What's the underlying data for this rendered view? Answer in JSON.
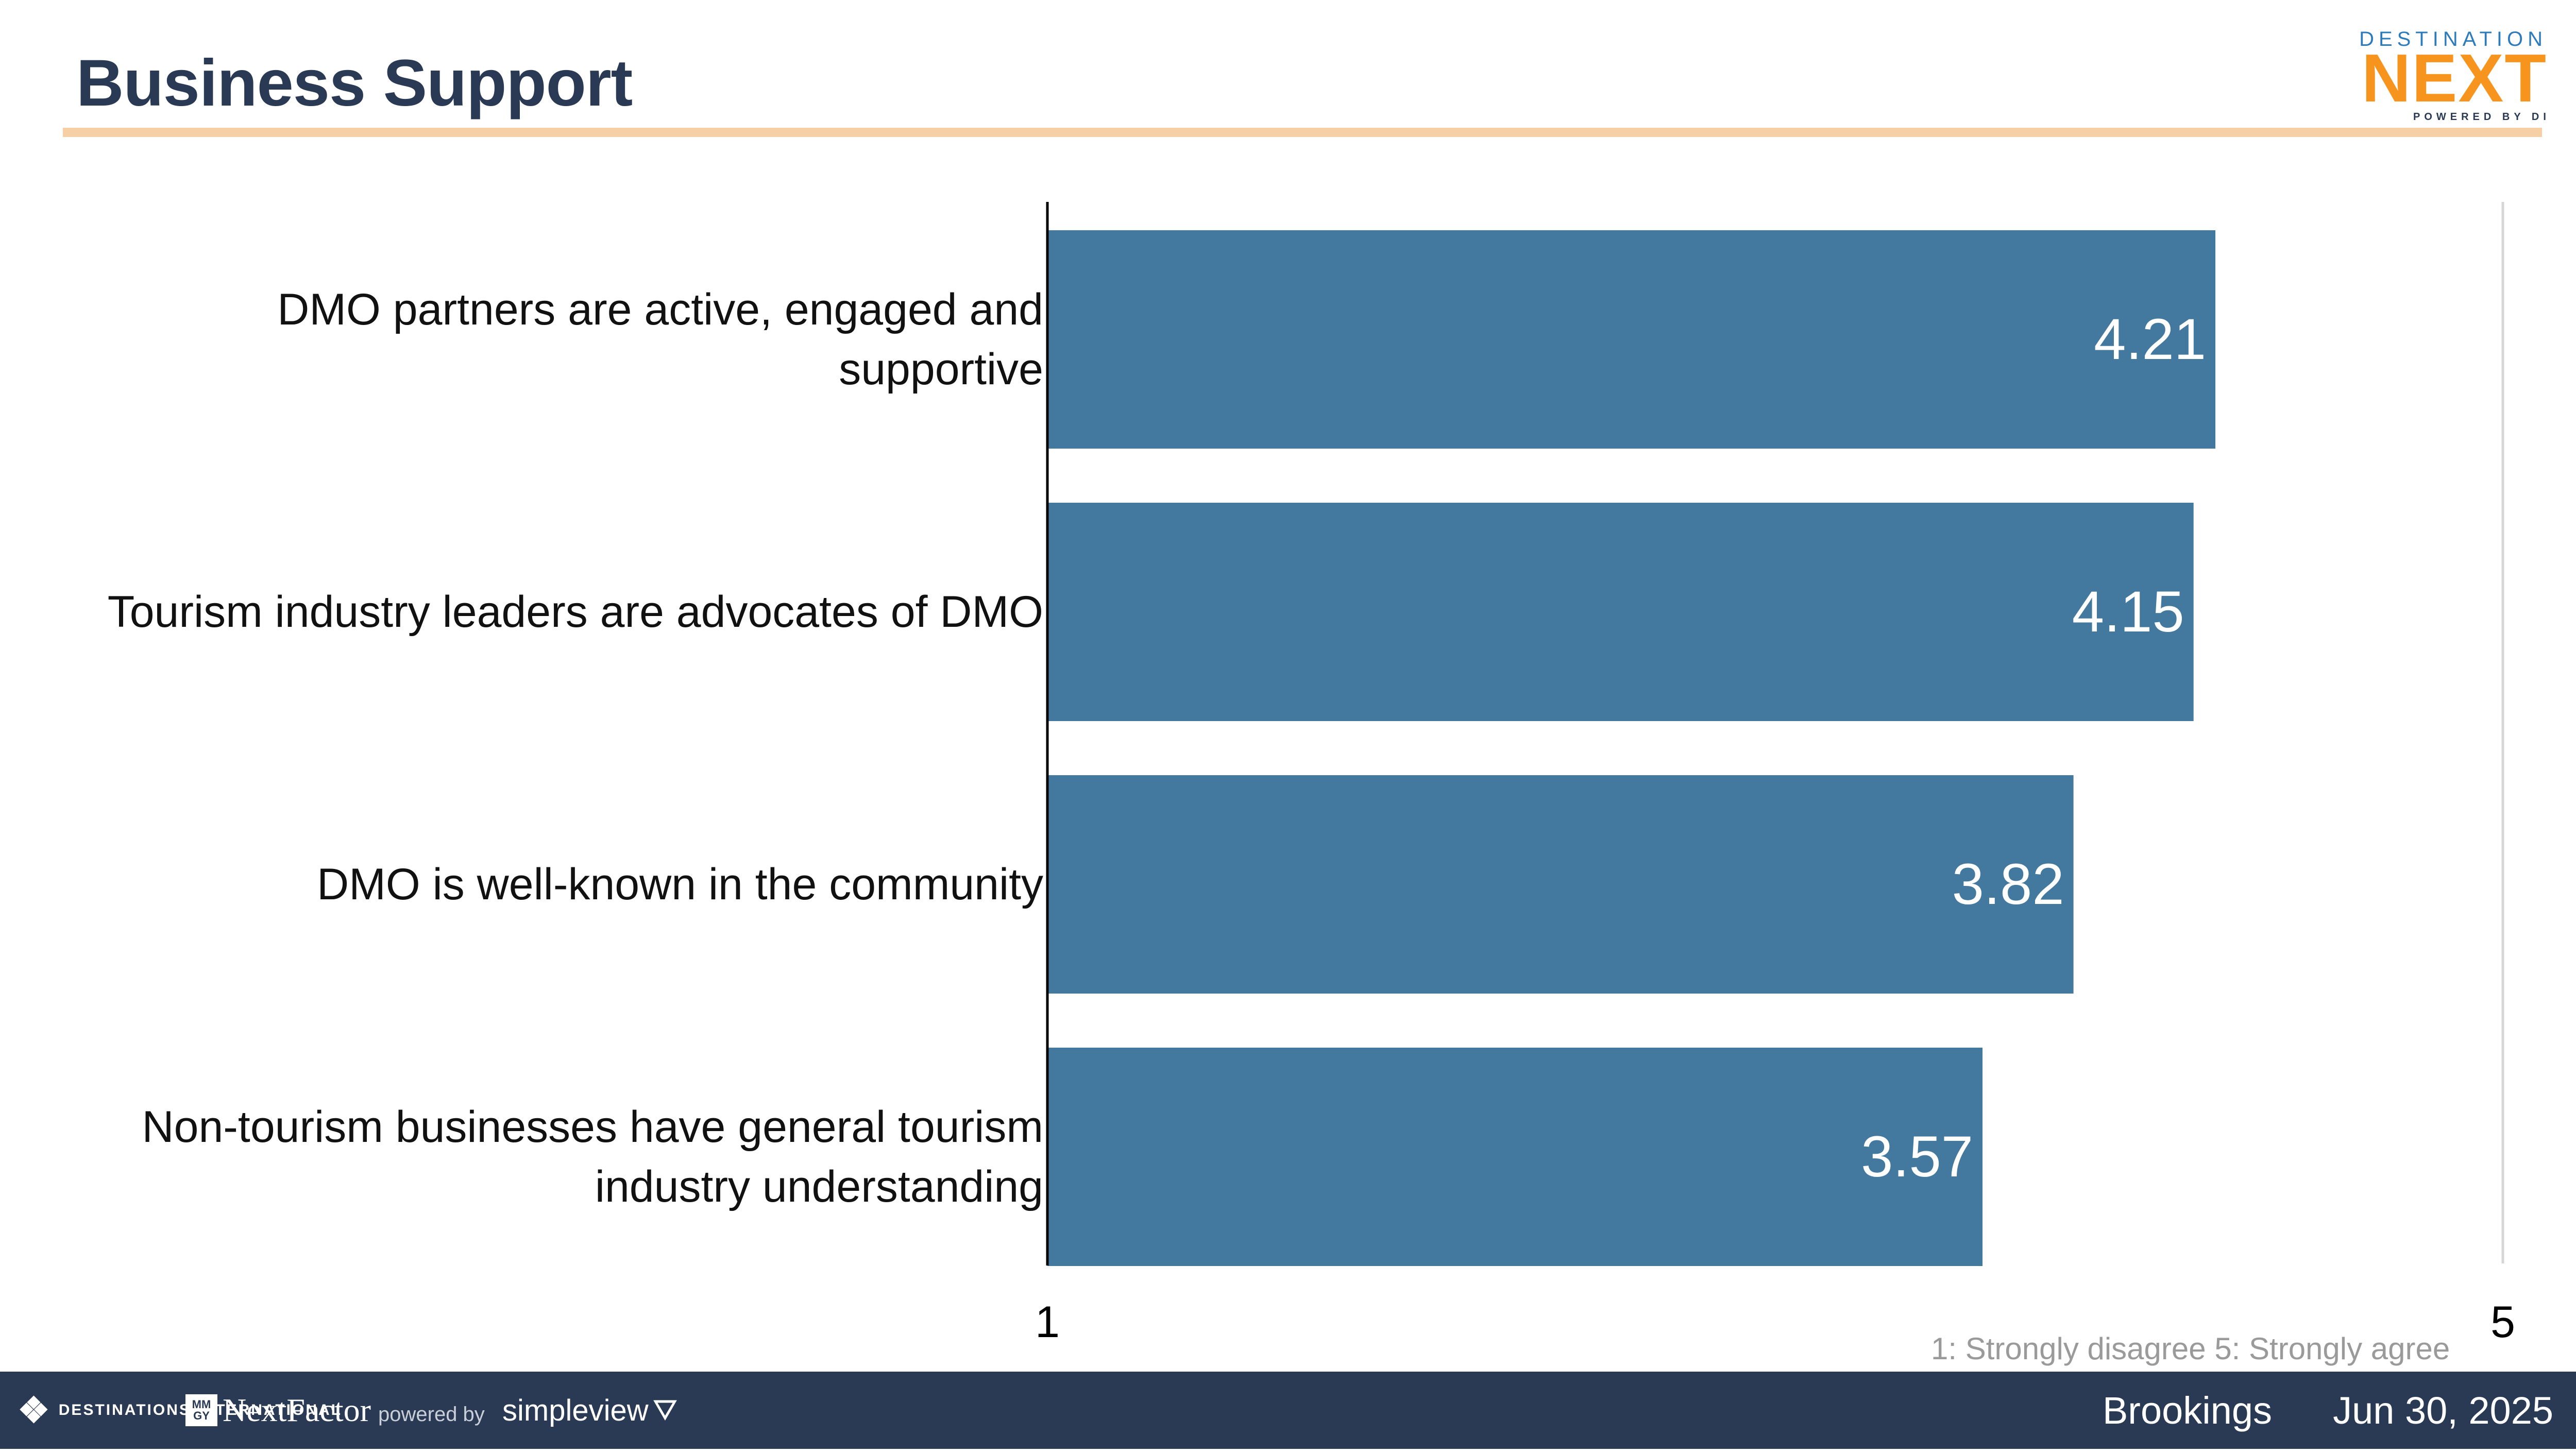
{
  "header": {
    "title": "Business Support",
    "logo": {
      "top": "DESTINATION",
      "main": "NEXT",
      "sub": "POWERED BY DI"
    }
  },
  "colors": {
    "bar": "#43799f",
    "title": "#2a3a54",
    "rule": "#f6d0a4",
    "footer_bg": "#2a3a54",
    "logo_orange": "#f7941d",
    "logo_blue": "#2b7bbd"
  },
  "chart_data": {
    "type": "bar",
    "orientation": "horizontal",
    "title": "Business Support",
    "categories": [
      [
        "DMO partners are active, engaged and",
        "supportive"
      ],
      [
        "Tourism industry leaders are advocates of DMO"
      ],
      [
        "DMO is well-known in the community"
      ],
      [
        "Non-tourism businesses have general tourism",
        "industry understanding"
      ]
    ],
    "values": [
      4.21,
      4.15,
      3.82,
      3.57
    ],
    "value_labels": [
      "4.21",
      "4.15",
      "3.82",
      "3.57"
    ],
    "xlim": [
      1,
      5
    ],
    "x_ticks": [
      "1",
      "5"
    ],
    "xlabel": "",
    "ylabel": "",
    "legend": "none",
    "grid": false
  },
  "footnote": "1: Strongly disagree  5: Strongly agree",
  "footer": {
    "di_brand": "DESTINATIONS INTERNATIONAL",
    "mmgy": "MM GY",
    "nextfactor": "NextFactor",
    "powered_by": "powered by",
    "simpleview": "simpleview",
    "location": "Brookings",
    "date": "Jun 30, 2025"
  }
}
